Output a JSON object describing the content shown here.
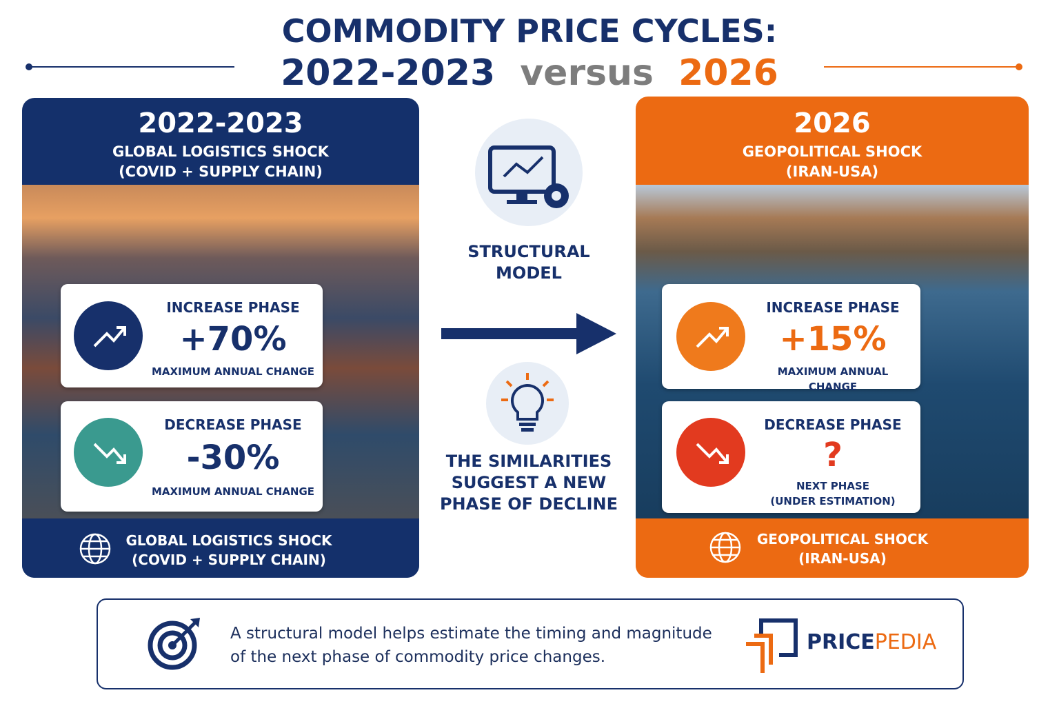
{
  "title": {
    "line1": "COMMODITY PRICE CYCLES:",
    "period_a": "2022-2023",
    "versus": "versus",
    "period_b": "2026"
  },
  "left_panel": {
    "year": "2022-2023",
    "heading": [
      "GLOBAL LOGISTICS SHOCK",
      "(COVID + SUPPLY CHAIN)"
    ],
    "increase": {
      "label": "INCREASE PHASE",
      "value": "+70%",
      "note": [
        "MAXIMUM ANNUAL CHANGE"
      ]
    },
    "decrease": {
      "label": "DECREASE PHASE",
      "value": "-30%",
      "note": [
        "MAXIMUM ANNUAL CHANGE"
      ]
    },
    "footer": [
      "GLOBAL LOGISTICS SHOCK",
      "(COVID + SUPPLY CHAIN)"
    ]
  },
  "center": {
    "model": [
      "STRUCTURAL",
      "MODEL"
    ],
    "message": [
      "THE SIMILARITIES",
      "SUGGEST A NEW",
      "PHASE OF DECLINE"
    ]
  },
  "right_panel": {
    "year": "2026",
    "heading": [
      "GEOPOLITICAL SHOCK",
      "(IRAN-USA)"
    ],
    "increase": {
      "label": "INCREASE PHASE",
      "value": "+15%",
      "note": [
        "MAXIMUM ANNUAL CHANGE"
      ]
    },
    "decrease": {
      "label": "DECREASE PHASE",
      "value": "?",
      "note": [
        "NEXT PHASE",
        "(UNDER ESTIMATION)"
      ]
    },
    "footer": [
      "GEOPOLITICAL SHOCK",
      "(IRAN-USA)"
    ]
  },
  "footer": {
    "text": [
      "A structural model helps estimate the timing and magnitude",
      "of the next phase of commodity price changes."
    ],
    "brand_a": "PRICE",
    "brand_b": "PEDIA"
  }
}
